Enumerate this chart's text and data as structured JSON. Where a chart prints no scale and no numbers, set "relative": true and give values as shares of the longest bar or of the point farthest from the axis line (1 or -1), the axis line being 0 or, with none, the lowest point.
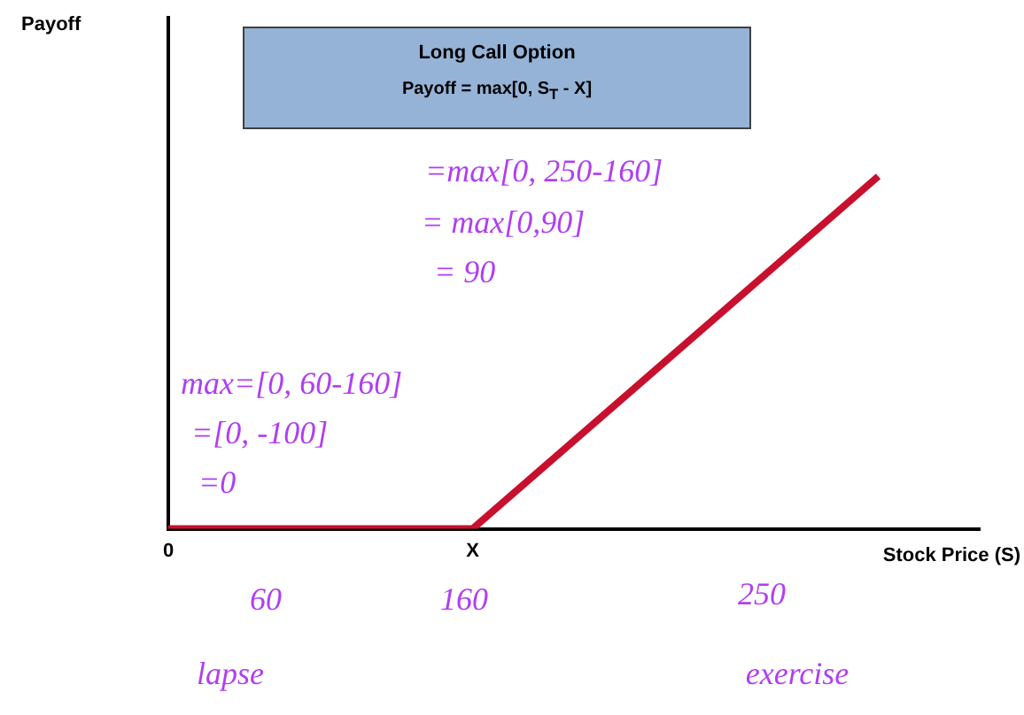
{
  "chart_data": {
    "type": "line",
    "title": "Long Call Option",
    "subtitle": "Payoff = max[0, S$_{T}$ - X]",
    "xlabel": "Stock Price (S)",
    "categories": [
      "0",
      null,
      null,
      "X",
      null,
      null,
      null,
      null,
      null
    ],
    "values": [
      0,
      null,
      null,
      0,
      null,
      null,
      null,
      1,
      null
    ],
    "color": "#c8102e",
    "relative": true,
    "marker": "none",
    "annotations": [
      "60",
      "160",
      "250",
      "lapse",
      "exercise",
      "=max[0, 250-160]",
      "= max[0,90]",
      "= 90",
      "max=[0, 60-160]",
      "=[0, -100]",
      "=0",
      "Payoff"
    ]
  }
}
